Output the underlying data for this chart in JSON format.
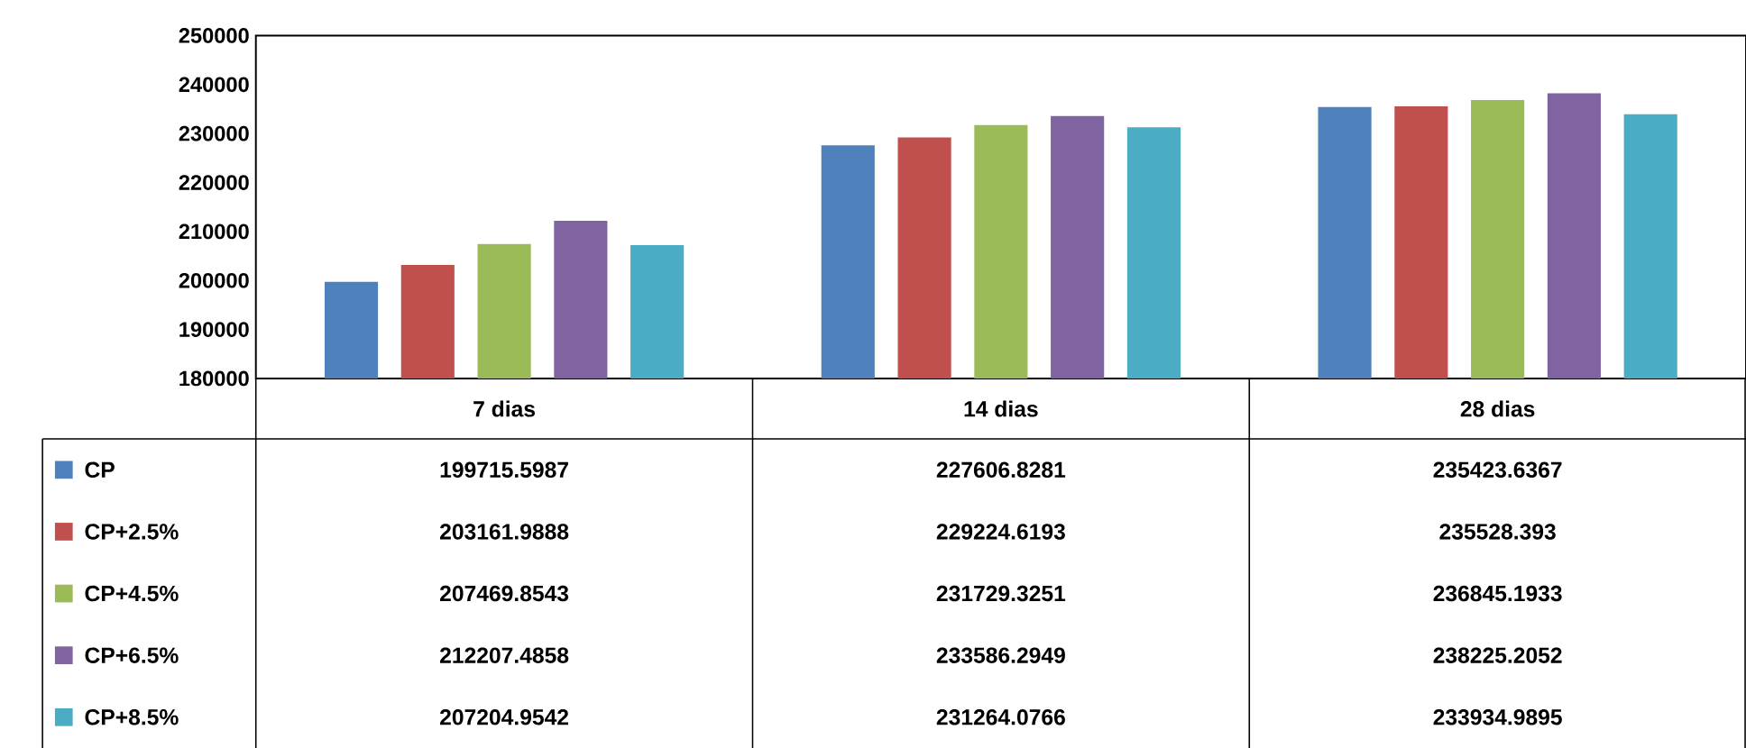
{
  "chart_data": {
    "type": "bar",
    "categories": [
      "7 dias",
      "14 dias",
      "28 dias"
    ],
    "series": [
      {
        "name": "CP",
        "color": "#4f81bd",
        "values": [
          199715.5987,
          227606.8281,
          235423.6367
        ]
      },
      {
        "name": "CP+2.5%",
        "color": "#c0504d",
        "values": [
          203161.9888,
          229224.6193,
          235528.393
        ]
      },
      {
        "name": "CP+4.5%",
        "color": "#9bbb59",
        "values": [
          207469.8543,
          231729.3251,
          236845.1933
        ]
      },
      {
        "name": "CP+6.5%",
        "color": "#8064a2",
        "values": [
          212207.4858,
          233586.2949,
          238225.2052
        ]
      },
      {
        "name": "CP+8.5%",
        "color": "#4bacc6",
        "values": [
          207204.9542,
          231264.0766,
          233934.9895
        ]
      }
    ],
    "ylim": [
      180000,
      250000
    ],
    "yticks": [
      180000,
      190000,
      200000,
      210000,
      220000,
      230000,
      240000,
      250000
    ],
    "grid": false,
    "legend": "bottom left",
    "data_labels": true
  }
}
